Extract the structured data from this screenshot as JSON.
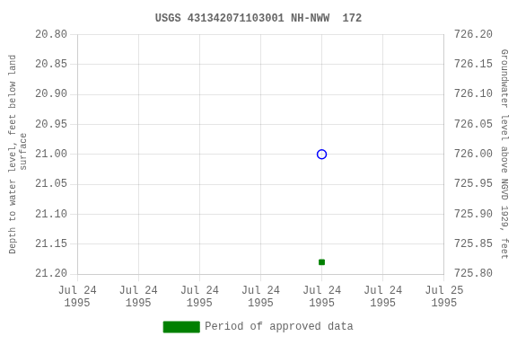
{
  "chart_data": {
    "type": "scatter",
    "title": "USGS 431342071103001 NH-NWW  172",
    "y_label": "Depth to water level, feet below land\n surface",
    "y2_label": "Groundwater level above NGVD 1929, feet",
    "x": [
      96
    ],
    "series": [
      {
        "color": "#0000ff",
        "marker": "hollow_circle",
        "values": [
          21.0
        ]
      },
      {
        "name": "Period of approved data",
        "color": "#008000",
        "marker": "square",
        "values": [
          21.18
        ]
      }
    ],
    "xlim": [
      0,
      144
    ],
    "xticks": [
      {
        "value": 0,
        "label": "Jul 24\n1995"
      },
      {
        "value": 24,
        "label": "Jul 24\n1995"
      },
      {
        "value": 48,
        "label": "Jul 24\n1995"
      },
      {
        "value": 72,
        "label": "Jul 24\n1995"
      },
      {
        "value": 96,
        "label": "Jul 24\n1995"
      },
      {
        "value": 120,
        "label": "Jul 24\n1995"
      },
      {
        "value": 144,
        "label": "Jul 25\n1995"
      }
    ],
    "ylim": [
      21.2,
      20.8
    ],
    "yticks": [
      {
        "value": 20.8,
        "label": "20.80"
      },
      {
        "value": 20.85,
        "label": "20.85"
      },
      {
        "value": 20.9,
        "label": "20.90"
      },
      {
        "value": 20.95,
        "label": "20.95"
      },
      {
        "value": 21.0,
        "label": "21.00"
      },
      {
        "value": 21.05,
        "label": "21.05"
      },
      {
        "value": 21.1,
        "label": "21.10"
      },
      {
        "value": 21.15,
        "label": "21.15"
      },
      {
        "value": 21.2,
        "label": "21.20"
      }
    ],
    "y2lim": [
      725.8,
      726.2
    ],
    "y2ticks": [
      {
        "value": 725.8,
        "label": "725.80"
      },
      {
        "value": 725.85,
        "label": "725.85"
      },
      {
        "value": 725.9,
        "label": "725.90"
      },
      {
        "value": 725.95,
        "label": "725.95"
      },
      {
        "value": 726.0,
        "label": "726.00"
      },
      {
        "value": 726.05,
        "label": "726.05"
      },
      {
        "value": 726.1,
        "label": "726.10"
      },
      {
        "value": 726.15,
        "label": "726.15"
      },
      {
        "value": 726.2,
        "label": "726.20"
      }
    ],
    "grid": true,
    "legend": "bottom"
  }
}
